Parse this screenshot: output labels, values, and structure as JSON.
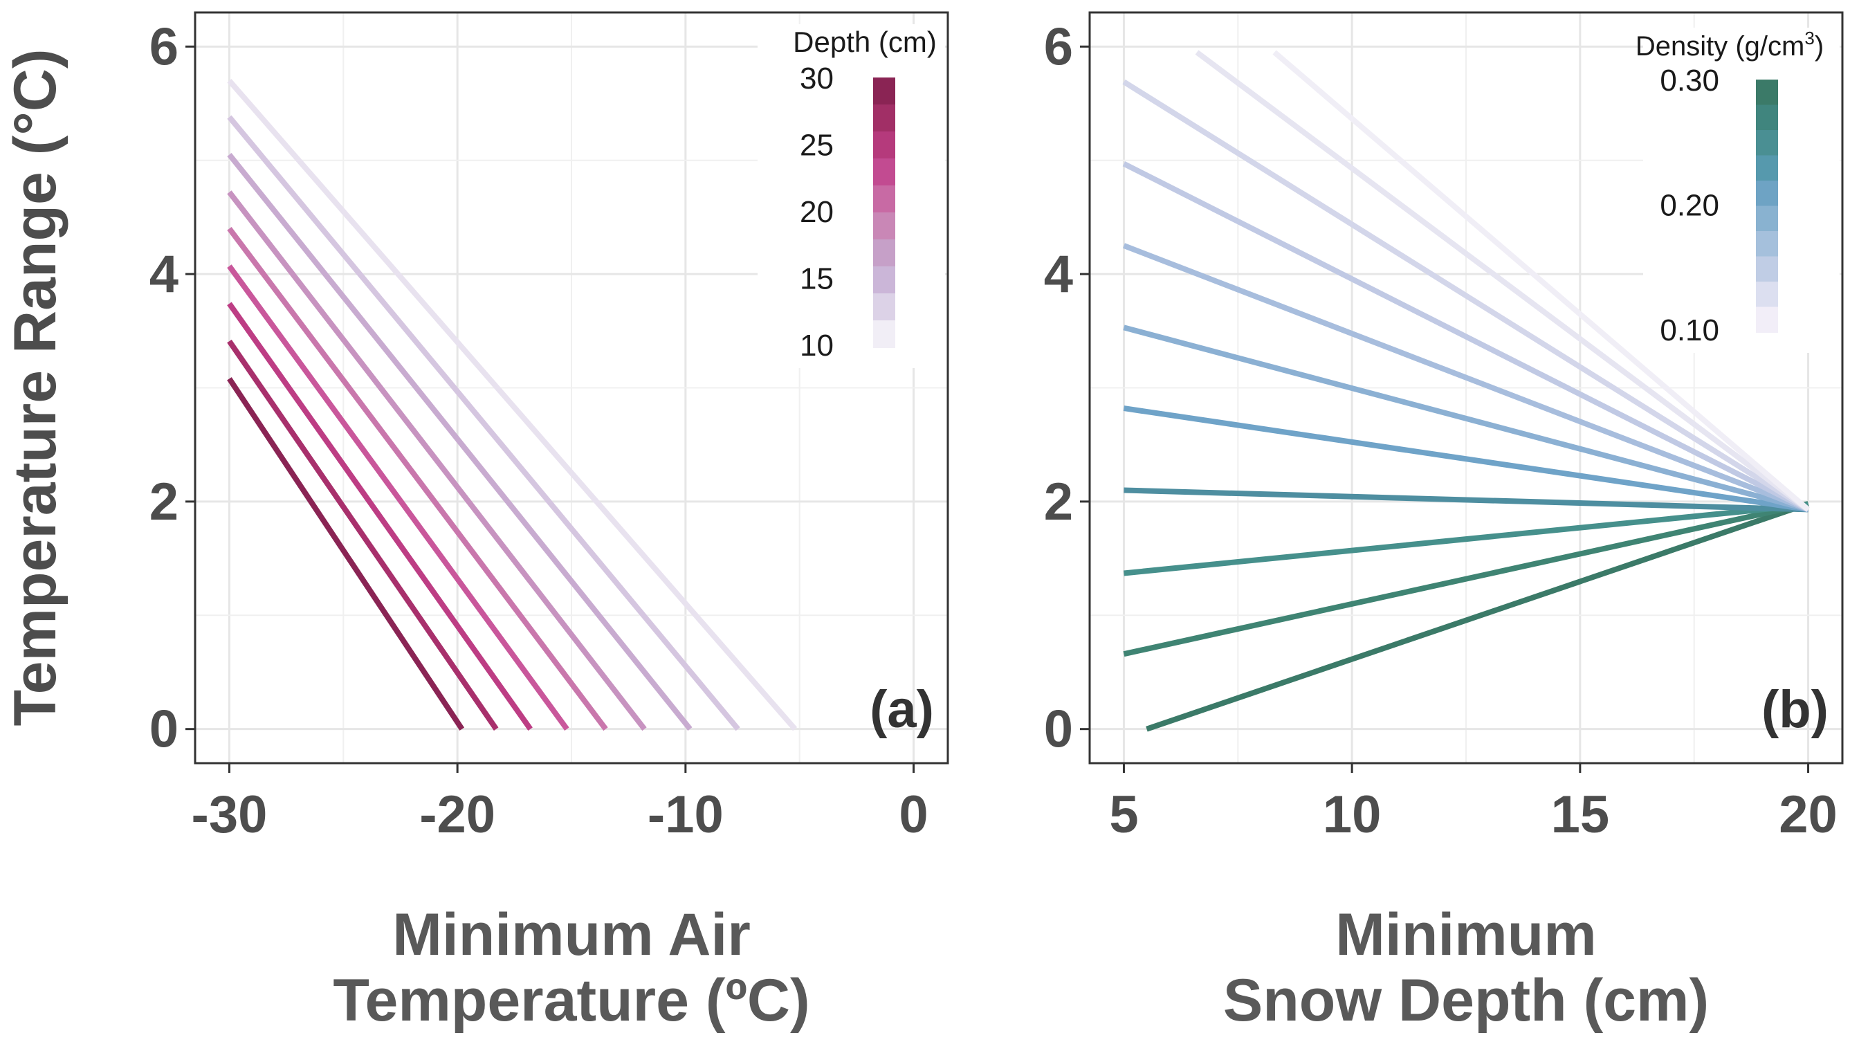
{
  "y_axis_title": "Temperature Range (°C)",
  "chart_data": [
    {
      "type": "line",
      "panel_label": "(a)",
      "xlabel_lines": [
        "Minimum Air",
        "Temperature (ºC)"
      ],
      "ylabel": "Temperature Range (°C)",
      "xlim": [
        -31.5,
        1.5
      ],
      "ylim": [
        -0.3,
        6.3
      ],
      "x_ticks": [
        -30,
        -20,
        -10,
        0
      ],
      "x_tick_labels": [
        "-30",
        "-20",
        "-10",
        "0"
      ],
      "y_ticks": [
        0,
        2,
        4,
        6
      ],
      "y_tick_labels": [
        "0",
        "2",
        "4",
        "6"
      ],
      "grid": true,
      "legend": {
        "title": "Depth (cm)",
        "placement": "top-right",
        "ticks": [
          "30",
          "25",
          "20",
          "15",
          "10"
        ],
        "colors_top_to_bottom": [
          "#8a2454",
          "#a12f66",
          "#b53a7c",
          "#c24b91",
          "#c86aa4",
          "#c987b6",
          "#c6a0c8",
          "#cbb6d8",
          "#dcd2e7",
          "#f1eef6"
        ]
      },
      "series": [
        {
          "depth": 30,
          "color": "#8a2454",
          "x": [
            -30,
            -19.8
          ],
          "y": [
            3.08,
            0
          ]
        },
        {
          "depth": 28,
          "color": "#a8306c",
          "x": [
            -30,
            -18.3
          ],
          "y": [
            3.41,
            0
          ]
        },
        {
          "depth": 26,
          "color": "#bd3d84",
          "x": [
            -30,
            -16.8
          ],
          "y": [
            3.74,
            0
          ]
        },
        {
          "depth": 24,
          "color": "#c9579b",
          "x": [
            -30,
            -15.2
          ],
          "y": [
            4.07,
            0
          ]
        },
        {
          "depth": 22,
          "color": "#c977ac",
          "x": [
            -30,
            -13.5
          ],
          "y": [
            4.4,
            0
          ]
        },
        {
          "depth": 20,
          "color": "#c793c0",
          "x": [
            -30,
            -11.8
          ],
          "y": [
            4.72,
            0
          ]
        },
        {
          "depth": 18,
          "color": "#c8abd0",
          "x": [
            -30,
            -9.8
          ],
          "y": [
            5.05,
            0
          ]
        },
        {
          "depth": 16,
          "color": "#d5c6e0",
          "x": [
            -30,
            -7.7
          ],
          "y": [
            5.38,
            0
          ]
        },
        {
          "depth": 14,
          "color": "#e8e2ef",
          "x": [
            -30,
            -5.2
          ],
          "y": [
            5.7,
            0
          ]
        }
      ]
    },
    {
      "type": "line",
      "panel_label": "(b)",
      "xlabel_lines": [
        "Minimum",
        "Snow Depth (cm)"
      ],
      "ylabel": "Temperature Range (°C)",
      "xlim": [
        4.25,
        20.75
      ],
      "ylim": [
        -0.3,
        6.3
      ],
      "x_ticks": [
        5,
        10,
        15,
        20
      ],
      "x_tick_labels": [
        "5",
        "10",
        "15",
        "20"
      ],
      "y_ticks": [
        0,
        2,
        4,
        6
      ],
      "y_tick_labels": [
        "0",
        "2",
        "4",
        "6"
      ],
      "grid": true,
      "legend": {
        "title_prefix": "Density (g/cm",
        "title_superscript": "3",
        "title_suffix": ")",
        "placement": "top-right",
        "ticks": [
          "0.30",
          "0.20",
          "0.10"
        ],
        "colors_top_to_bottom": [
          "#3b7a68",
          "#40857e",
          "#4a8f93",
          "#5699ad",
          "#6ea3c4",
          "#89b2d0",
          "#a5c0dc",
          "#c0cde5",
          "#dcdff0",
          "#f2eef8"
        ]
      },
      "series": [
        {
          "density": 0.3,
          "color": "#3b7a68",
          "x": [
            5.5,
            20
          ],
          "y": [
            0.0,
            1.98
          ]
        },
        {
          "density": 0.28,
          "color": "#3f8473",
          "x": [
            5,
            20
          ],
          "y": [
            0.66,
            1.98
          ]
        },
        {
          "density": 0.26,
          "color": "#46908c",
          "x": [
            5,
            20
          ],
          "y": [
            1.37,
            1.97
          ]
        },
        {
          "density": 0.24,
          "color": "#4e8ea0",
          "x": [
            5,
            20
          ],
          "y": [
            2.1,
            1.93
          ]
        },
        {
          "density": 0.22,
          "color": "#6fa3c8",
          "x": [
            5,
            20
          ],
          "y": [
            2.82,
            1.93
          ]
        },
        {
          "density": 0.2,
          "color": "#8bb0d3",
          "x": [
            5,
            20
          ],
          "y": [
            3.53,
            1.93
          ]
        },
        {
          "density": 0.18,
          "color": "#a7bddd",
          "x": [
            5,
            20
          ],
          "y": [
            4.25,
            1.93
          ]
        },
        {
          "density": 0.16,
          "color": "#c0c9e4",
          "x": [
            5,
            20
          ],
          "y": [
            4.97,
            1.93
          ]
        },
        {
          "density": 0.14,
          "color": "#d3d6ea",
          "x": [
            5,
            20
          ],
          "y": [
            5.69,
            1.93
          ]
        },
        {
          "density": 0.12,
          "color": "#e6e5f1",
          "x": [
            6.6,
            20
          ],
          "y": [
            5.95,
            1.93
          ]
        },
        {
          "density": 0.1,
          "color": "#f0eef6",
          "x": [
            8.3,
            20
          ],
          "y": [
            5.95,
            1.93
          ]
        }
      ]
    }
  ]
}
